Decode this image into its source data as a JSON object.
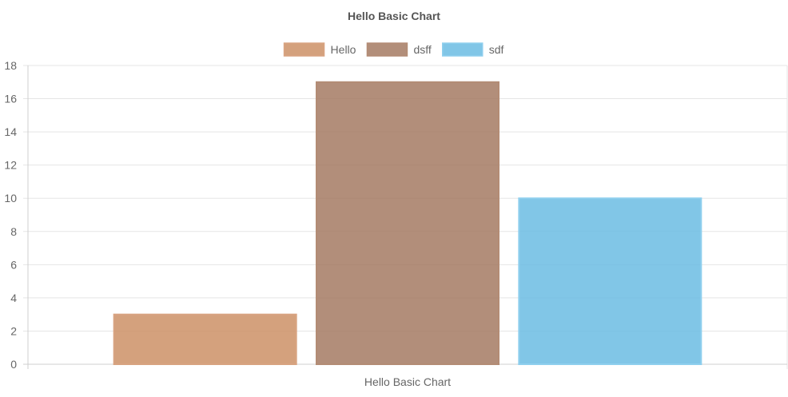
{
  "chart_data": {
    "type": "bar",
    "title": "Hello Basic Chart",
    "categories": [
      "Hello Basic Chart"
    ],
    "series": [
      {
        "name": "Hello",
        "values": [
          3
        ],
        "color": "#cc9166",
        "border": "#d8a381"
      },
      {
        "name": "dsff",
        "values": [
          17
        ],
        "color": "#a57a63",
        "border": "#b38c75"
      },
      {
        "name": "sdf",
        "values": [
          10
        ],
        "color": "#6bbce3",
        "border": "#8fcfee"
      }
    ],
    "xlabel": "",
    "ylabel": "",
    "ylim": [
      0,
      18
    ],
    "yticks": [
      0,
      2,
      4,
      6,
      8,
      10,
      12,
      14,
      16,
      18
    ],
    "grid": true,
    "legend_position": "top"
  }
}
